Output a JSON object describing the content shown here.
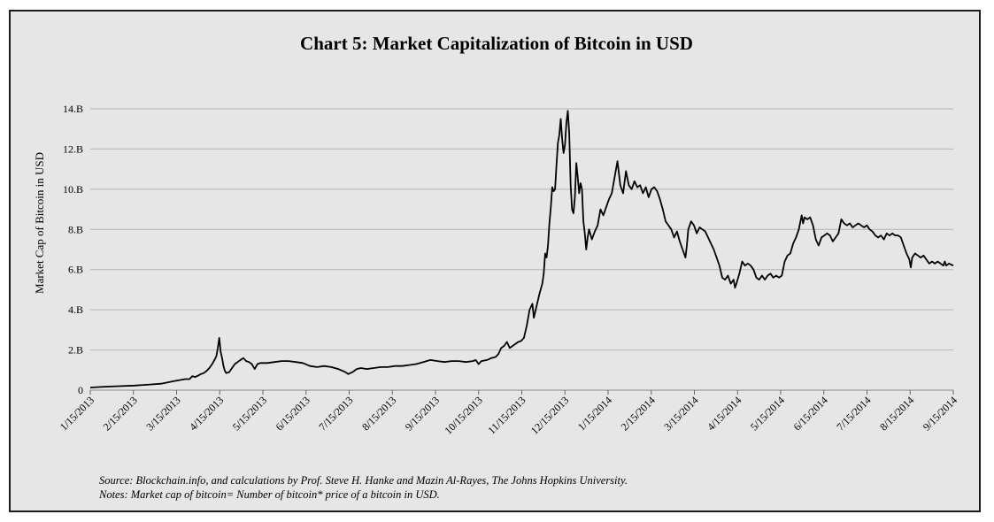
{
  "chart_data": {
    "type": "line",
    "title": "Chart 5: Market Capitalization of Bitcoin in USD",
    "xlabel": "",
    "ylabel": "Market Cap of Bitcoin in USD",
    "ylim": [
      0,
      14
    ],
    "y_ticks": [
      0,
      2,
      4,
      6,
      8,
      10,
      12,
      14
    ],
    "y_tick_labels": [
      "0",
      "2.B",
      "4.B",
      "6.B",
      "8.B",
      "10.B",
      "12.B",
      "14.B"
    ],
    "x_tick_labels": [
      "1/15/2013",
      "2/15/2013",
      "3/15/2013",
      "4/15/2013",
      "5/15/2013",
      "6/15/2013",
      "7/15/2013",
      "8/15/2013",
      "9/15/2013",
      "10/15/2013",
      "11/15/2013",
      "12/15/2013",
      "1/15/2014",
      "2/15/2014",
      "3/15/2014",
      "4/15/2014",
      "5/15/2014",
      "6/15/2014",
      "7/15/2014",
      "8/15/2014",
      "9/15/2014"
    ],
    "x_range_days": [
      0,
      609
    ],
    "grid": true,
    "units": "billions USD",
    "series": [
      {
        "name": "Market cap of bitcoin",
        "points": [
          [
            0,
            0.13
          ],
          [
            10,
            0.17
          ],
          [
            20,
            0.2
          ],
          [
            31,
            0.23
          ],
          [
            40,
            0.27
          ],
          [
            50,
            0.32
          ],
          [
            59,
            0.45
          ],
          [
            63,
            0.5
          ],
          [
            67,
            0.55
          ],
          [
            70,
            0.55
          ],
          [
            72,
            0.7
          ],
          [
            74,
            0.65
          ],
          [
            76,
            0.72
          ],
          [
            78,
            0.8
          ],
          [
            80,
            0.85
          ],
          [
            82,
            0.95
          ],
          [
            84,
            1.1
          ],
          [
            86,
            1.3
          ],
          [
            88,
            1.55
          ],
          [
            89,
            1.7
          ],
          [
            90,
            2.1
          ],
          [
            91,
            2.6
          ],
          [
            92,
            1.9
          ],
          [
            93,
            1.6
          ],
          [
            94,
            1.2
          ],
          [
            95,
            0.95
          ],
          [
            96,
            0.85
          ],
          [
            98,
            0.9
          ],
          [
            100,
            1.1
          ],
          [
            102,
            1.3
          ],
          [
            104,
            1.4
          ],
          [
            106,
            1.5
          ],
          [
            108,
            1.6
          ],
          [
            110,
            1.45
          ],
          [
            112,
            1.4
          ],
          [
            114,
            1.3
          ],
          [
            116,
            1.05
          ],
          [
            118,
            1.3
          ],
          [
            120,
            1.35
          ],
          [
            125,
            1.35
          ],
          [
            130,
            1.4
          ],
          [
            135,
            1.45
          ],
          [
            140,
            1.45
          ],
          [
            145,
            1.4
          ],
          [
            150,
            1.35
          ],
          [
            155,
            1.2
          ],
          [
            160,
            1.15
          ],
          [
            165,
            1.2
          ],
          [
            170,
            1.15
          ],
          [
            175,
            1.05
          ],
          [
            180,
            0.9
          ],
          [
            182,
            0.8
          ],
          [
            185,
            0.9
          ],
          [
            188,
            1.05
          ],
          [
            191,
            1.1
          ],
          [
            195,
            1.05
          ],
          [
            200,
            1.1
          ],
          [
            205,
            1.15
          ],
          [
            210,
            1.15
          ],
          [
            215,
            1.2
          ],
          [
            220,
            1.2
          ],
          [
            225,
            1.25
          ],
          [
            230,
            1.3
          ],
          [
            235,
            1.4
          ],
          [
            240,
            1.5
          ],
          [
            245,
            1.45
          ],
          [
            250,
            1.4
          ],
          [
            255,
            1.45
          ],
          [
            260,
            1.45
          ],
          [
            265,
            1.4
          ],
          [
            270,
            1.45
          ],
          [
            272,
            1.5
          ],
          [
            274,
            1.3
          ],
          [
            276,
            1.45
          ],
          [
            280,
            1.5
          ],
          [
            283,
            1.6
          ],
          [
            286,
            1.65
          ],
          [
            288,
            1.8
          ],
          [
            290,
            2.1
          ],
          [
            292,
            2.2
          ],
          [
            294,
            2.4
          ],
          [
            296,
            2.1
          ],
          [
            298,
            2.2
          ],
          [
            300,
            2.3
          ],
          [
            302,
            2.4
          ],
          [
            304,
            2.45
          ],
          [
            306,
            2.6
          ],
          [
            308,
            3.2
          ],
          [
            310,
            4.0
          ],
          [
            312,
            4.3
          ],
          [
            313,
            3.6
          ],
          [
            315,
            4.2
          ],
          [
            317,
            4.8
          ],
          [
            319,
            5.3
          ],
          [
            320,
            5.8
          ],
          [
            321,
            6.8
          ],
          [
            322,
            6.6
          ],
          [
            323,
            7.2
          ],
          [
            324,
            8.3
          ],
          [
            325,
            9.1
          ],
          [
            326,
            10.1
          ],
          [
            327,
            9.9
          ],
          [
            328,
            10.0
          ],
          [
            329,
            11.2
          ],
          [
            330,
            12.3
          ],
          [
            331,
            12.7
          ],
          [
            332,
            13.5
          ],
          [
            333,
            12.5
          ],
          [
            334,
            11.8
          ],
          [
            335,
            12.2
          ],
          [
            336,
            13.3
          ],
          [
            337,
            13.9
          ],
          [
            338,
            12.8
          ],
          [
            339,
            10.2
          ],
          [
            340,
            9.0
          ],
          [
            341,
            8.8
          ],
          [
            342,
            9.6
          ],
          [
            343,
            11.3
          ],
          [
            344,
            10.6
          ],
          [
            345,
            9.8
          ],
          [
            346,
            10.3
          ],
          [
            347,
            10.0
          ],
          [
            348,
            8.4
          ],
          [
            349,
            7.8
          ],
          [
            350,
            7.0
          ],
          [
            351,
            7.6
          ],
          [
            352,
            8.0
          ],
          [
            354,
            7.5
          ],
          [
            356,
            7.9
          ],
          [
            358,
            8.2
          ],
          [
            360,
            9.0
          ],
          [
            362,
            8.7
          ],
          [
            364,
            9.1
          ],
          [
            366,
            9.5
          ],
          [
            368,
            9.8
          ],
          [
            370,
            10.6
          ],
          [
            372,
            11.4
          ],
          [
            374,
            10.2
          ],
          [
            376,
            9.8
          ],
          [
            378,
            10.9
          ],
          [
            380,
            10.2
          ],
          [
            382,
            10.0
          ],
          [
            384,
            10.4
          ],
          [
            386,
            10.1
          ],
          [
            388,
            10.2
          ],
          [
            390,
            9.8
          ],
          [
            392,
            10.1
          ],
          [
            394,
            9.6
          ],
          [
            396,
            10.0
          ],
          [
            398,
            10.1
          ],
          [
            400,
            9.9
          ],
          [
            402,
            9.5
          ],
          [
            404,
            9.0
          ],
          [
            406,
            8.4
          ],
          [
            408,
            8.2
          ],
          [
            410,
            8.0
          ],
          [
            412,
            7.6
          ],
          [
            414,
            7.9
          ],
          [
            416,
            7.4
          ],
          [
            418,
            7.0
          ],
          [
            420,
            6.6
          ],
          [
            421,
            7.2
          ],
          [
            422,
            8.0
          ],
          [
            424,
            8.4
          ],
          [
            426,
            8.2
          ],
          [
            428,
            7.8
          ],
          [
            430,
            8.1
          ],
          [
            432,
            8.0
          ],
          [
            434,
            7.9
          ],
          [
            436,
            7.6
          ],
          [
            438,
            7.3
          ],
          [
            440,
            7.0
          ],
          [
            442,
            6.6
          ],
          [
            444,
            6.2
          ],
          [
            446,
            5.6
          ],
          [
            448,
            5.5
          ],
          [
            450,
            5.7
          ],
          [
            452,
            5.3
          ],
          [
            454,
            5.5
          ],
          [
            455,
            5.1
          ],
          [
            456,
            5.3
          ],
          [
            458,
            5.8
          ],
          [
            460,
            6.4
          ],
          [
            462,
            6.2
          ],
          [
            464,
            6.3
          ],
          [
            466,
            6.2
          ],
          [
            468,
            6.0
          ],
          [
            470,
            5.6
          ],
          [
            472,
            5.5
          ],
          [
            474,
            5.7
          ],
          [
            476,
            5.5
          ],
          [
            478,
            5.7
          ],
          [
            480,
            5.8
          ],
          [
            482,
            5.6
          ],
          [
            484,
            5.7
          ],
          [
            486,
            5.6
          ],
          [
            488,
            5.7
          ],
          [
            490,
            6.4
          ],
          [
            492,
            6.7
          ],
          [
            494,
            6.8
          ],
          [
            496,
            7.3
          ],
          [
            498,
            7.6
          ],
          [
            500,
            8.0
          ],
          [
            502,
            8.7
          ],
          [
            503,
            8.3
          ],
          [
            504,
            8.6
          ],
          [
            506,
            8.5
          ],
          [
            508,
            8.6
          ],
          [
            510,
            8.2
          ],
          [
            512,
            7.5
          ],
          [
            514,
            7.2
          ],
          [
            516,
            7.6
          ],
          [
            518,
            7.7
          ],
          [
            520,
            7.8
          ],
          [
            522,
            7.7
          ],
          [
            524,
            7.4
          ],
          [
            526,
            7.6
          ],
          [
            528,
            7.8
          ],
          [
            530,
            8.5
          ],
          [
            532,
            8.3
          ],
          [
            534,
            8.2
          ],
          [
            536,
            8.3
          ],
          [
            538,
            8.1
          ],
          [
            540,
            8.2
          ],
          [
            542,
            8.3
          ],
          [
            544,
            8.2
          ],
          [
            546,
            8.1
          ],
          [
            548,
            8.2
          ],
          [
            550,
            8.0
          ],
          [
            552,
            7.9
          ],
          [
            554,
            7.7
          ],
          [
            556,
            7.6
          ],
          [
            558,
            7.7
          ],
          [
            560,
            7.5
          ],
          [
            562,
            7.8
          ],
          [
            564,
            7.7
          ],
          [
            566,
            7.8
          ],
          [
            568,
            7.7
          ],
          [
            570,
            7.7
          ],
          [
            572,
            7.6
          ],
          [
            574,
            7.2
          ],
          [
            576,
            6.8
          ],
          [
            578,
            6.5
          ],
          [
            579,
            6.1
          ],
          [
            580,
            6.6
          ],
          [
            582,
            6.8
          ],
          [
            584,
            6.7
          ],
          [
            586,
            6.6
          ],
          [
            588,
            6.7
          ],
          [
            590,
            6.5
          ],
          [
            592,
            6.3
          ],
          [
            594,
            6.4
          ],
          [
            596,
            6.3
          ],
          [
            598,
            6.4
          ],
          [
            600,
            6.3
          ],
          [
            602,
            6.2
          ],
          [
            603,
            6.4
          ],
          [
            604,
            6.2
          ],
          [
            606,
            6.3
          ],
          [
            609,
            6.2
          ]
        ]
      }
    ]
  },
  "notes": {
    "source": "Source: Blockchain.info, and calculations by Prof. Steve H. Hanke and Mazin Al-Rayes, The Johns Hopkins University.",
    "note": "Notes: Market cap of bitcoin= Number of bitcoin* price of a bitcoin in USD."
  }
}
